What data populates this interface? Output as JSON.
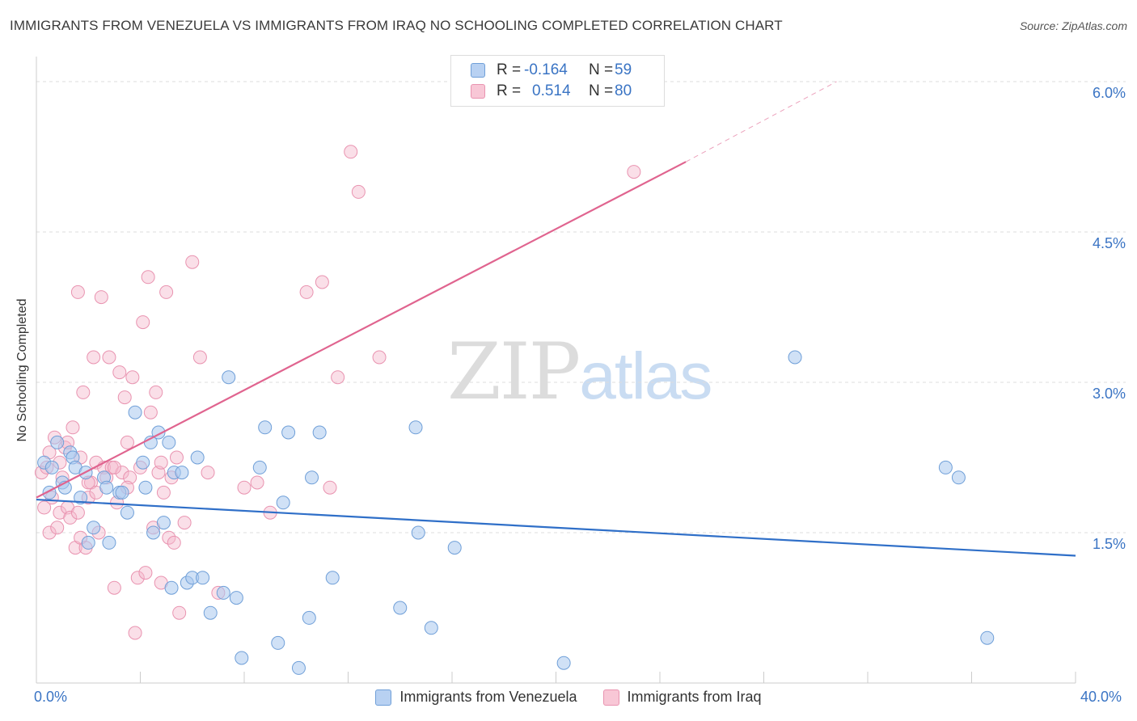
{
  "header": {
    "title": "IMMIGRANTS FROM VENEZUELA VS IMMIGRANTS FROM IRAQ NO SCHOOLING COMPLETED CORRELATION CHART",
    "source": "Source: ZipAtlas.com"
  },
  "watermark": {
    "zip": "ZIP",
    "atlas": "atlas"
  },
  "legend": {
    "rows": [
      {
        "r_label": "R =",
        "r_value": "-0.164",
        "n_label": "N =",
        "n_value": "59"
      },
      {
        "r_label": "R =",
        "r_value": "0.514",
        "n_label": "N =",
        "n_value": "80"
      }
    ]
  },
  "colors": {
    "venezuela_fill": "#a9c8ef",
    "venezuela_stroke": "#6f9fd8",
    "venezuela_line": "#2f6fc8",
    "iraq_fill": "#f5b8cb",
    "iraq_stroke": "#e993b0",
    "iraq_line": "#e0648f",
    "tick_label": "#3a74c4",
    "grid": "#dddddd"
  },
  "chart_data": {
    "type": "scatter",
    "title": "IMMIGRANTS FROM VENEZUELA VS IMMIGRANTS FROM IRAQ NO SCHOOLING COMPLETED CORRELATION CHART",
    "xlabel": "",
    "ylabel": "No Schooling Completed",
    "xlim": [
      0,
      40
    ],
    "ylim": [
      0,
      6.25
    ],
    "x_tick_labels": [
      "0.0%",
      "40.0%"
    ],
    "y_ticks": [
      1.5,
      3.0,
      4.5,
      6.0
    ],
    "y_tick_labels": [
      "1.5%",
      "3.0%",
      "4.5%",
      "6.0%"
    ],
    "grid": true,
    "legend_position": "top-center",
    "series": [
      {
        "name": "Immigrants from Venezuela",
        "r": -0.164,
        "n": 59,
        "trend": {
          "x": [
            0,
            40
          ],
          "y": [
            1.83,
            1.27
          ]
        },
        "points": [
          [
            0.3,
            2.2
          ],
          [
            0.5,
            1.9
          ],
          [
            0.6,
            2.15
          ],
          [
            0.8,
            2.4
          ],
          [
            1.0,
            2.0
          ],
          [
            1.1,
            1.95
          ],
          [
            1.3,
            2.3
          ],
          [
            1.4,
            2.25
          ],
          [
            1.5,
            2.15
          ],
          [
            1.7,
            1.85
          ],
          [
            1.9,
            2.1
          ],
          [
            2.0,
            1.4
          ],
          [
            2.2,
            1.55
          ],
          [
            2.6,
            2.05
          ],
          [
            2.7,
            1.95
          ],
          [
            2.8,
            1.4
          ],
          [
            3.2,
            1.9
          ],
          [
            3.3,
            1.9
          ],
          [
            3.5,
            1.7
          ],
          [
            3.8,
            2.7
          ],
          [
            4.1,
            2.2
          ],
          [
            4.2,
            1.95
          ],
          [
            4.4,
            2.4
          ],
          [
            4.5,
            1.5
          ],
          [
            4.7,
            2.5
          ],
          [
            4.9,
            1.6
          ],
          [
            5.1,
            2.4
          ],
          [
            5.2,
            0.95
          ],
          [
            5.3,
            2.1
          ],
          [
            5.6,
            2.1
          ],
          [
            5.8,
            1.0
          ],
          [
            6.0,
            1.05
          ],
          [
            6.2,
            2.25
          ],
          [
            6.4,
            1.05
          ],
          [
            6.7,
            0.7
          ],
          [
            7.2,
            0.9
          ],
          [
            7.4,
            3.05
          ],
          [
            7.7,
            0.85
          ],
          [
            7.9,
            0.25
          ],
          [
            8.6,
            2.15
          ],
          [
            8.8,
            2.55
          ],
          [
            9.3,
            0.4
          ],
          [
            9.5,
            1.8
          ],
          [
            9.7,
            2.5
          ],
          [
            10.1,
            0.15
          ],
          [
            10.5,
            0.65
          ],
          [
            10.6,
            2.05
          ],
          [
            10.9,
            2.5
          ],
          [
            11.4,
            1.05
          ],
          [
            14.0,
            0.75
          ],
          [
            14.6,
            2.55
          ],
          [
            14.7,
            1.5
          ],
          [
            15.2,
            0.55
          ],
          [
            16.1,
            1.35
          ],
          [
            20.3,
            0.2
          ],
          [
            29.2,
            3.25
          ],
          [
            35.0,
            2.15
          ],
          [
            35.5,
            2.05
          ],
          [
            36.6,
            0.45
          ]
        ]
      },
      {
        "name": "Immigrants from Iraq",
        "r": 0.514,
        "n": 80,
        "trend": {
          "x": [
            0,
            25
          ],
          "y": [
            1.85,
            5.2
          ]
        },
        "trend_dashed": {
          "x": [
            25,
            30.8
          ],
          "y": [
            5.2,
            6.0
          ]
        },
        "points": [
          [
            0.2,
            2.1
          ],
          [
            0.3,
            1.75
          ],
          [
            0.4,
            2.15
          ],
          [
            0.5,
            1.5
          ],
          [
            0.6,
            1.85
          ],
          [
            0.7,
            2.45
          ],
          [
            0.8,
            1.55
          ],
          [
            0.9,
            1.7
          ],
          [
            1.0,
            2.05
          ],
          [
            1.1,
            2.35
          ],
          [
            1.2,
            1.75
          ],
          [
            1.3,
            1.65
          ],
          [
            1.4,
            2.55
          ],
          [
            1.5,
            1.35
          ],
          [
            1.6,
            3.9
          ],
          [
            1.7,
            1.45
          ],
          [
            1.8,
            2.9
          ],
          [
            1.9,
            1.35
          ],
          [
            2.0,
            1.85
          ],
          [
            2.1,
            2.0
          ],
          [
            2.2,
            3.25
          ],
          [
            2.3,
            2.2
          ],
          [
            2.4,
            1.5
          ],
          [
            2.5,
            3.85
          ],
          [
            2.6,
            2.15
          ],
          [
            2.7,
            2.05
          ],
          [
            2.8,
            3.25
          ],
          [
            2.9,
            2.15
          ],
          [
            3.0,
            0.95
          ],
          [
            3.1,
            1.8
          ],
          [
            3.2,
            3.1
          ],
          [
            3.3,
            2.1
          ],
          [
            3.4,
            2.85
          ],
          [
            3.5,
            2.4
          ],
          [
            3.6,
            2.05
          ],
          [
            3.7,
            3.05
          ],
          [
            3.8,
            0.5
          ],
          [
            3.9,
            1.05
          ],
          [
            4.0,
            2.15
          ],
          [
            4.1,
            3.6
          ],
          [
            4.2,
            1.1
          ],
          [
            4.3,
            4.05
          ],
          [
            4.4,
            2.7
          ],
          [
            4.5,
            1.55
          ],
          [
            4.6,
            2.9
          ],
          [
            4.7,
            2.1
          ],
          [
            4.8,
            2.2
          ],
          [
            4.9,
            1.9
          ],
          [
            5.0,
            3.9
          ],
          [
            5.1,
            1.45
          ],
          [
            5.2,
            2.05
          ],
          [
            5.3,
            1.4
          ],
          [
            5.4,
            2.25
          ],
          [
            5.5,
            0.7
          ],
          [
            5.7,
            1.6
          ],
          [
            6.0,
            4.2
          ],
          [
            6.3,
            3.25
          ],
          [
            6.6,
            2.1
          ],
          [
            7.0,
            0.9
          ],
          [
            8.0,
            1.95
          ],
          [
            8.5,
            2.0
          ],
          [
            9.0,
            1.7
          ],
          [
            10.4,
            3.9
          ],
          [
            11.0,
            4.0
          ],
          [
            11.3,
            1.95
          ],
          [
            11.6,
            3.05
          ],
          [
            12.1,
            5.3
          ],
          [
            12.4,
            4.9
          ],
          [
            13.2,
            3.25
          ],
          [
            23.0,
            5.1
          ],
          [
            3.5,
            1.95
          ],
          [
            2.3,
            1.9
          ],
          [
            1.6,
            1.7
          ],
          [
            0.9,
            2.2
          ],
          [
            4.8,
            1.0
          ],
          [
            3.0,
            2.15
          ],
          [
            2.0,
            2.0
          ],
          [
            1.2,
            2.4
          ],
          [
            0.5,
            2.3
          ],
          [
            1.7,
            2.25
          ]
        ]
      }
    ]
  },
  "bottom_legend": {
    "items": [
      {
        "label": "Immigrants from Venezuela"
      },
      {
        "label": "Immigrants from Iraq"
      }
    ]
  }
}
